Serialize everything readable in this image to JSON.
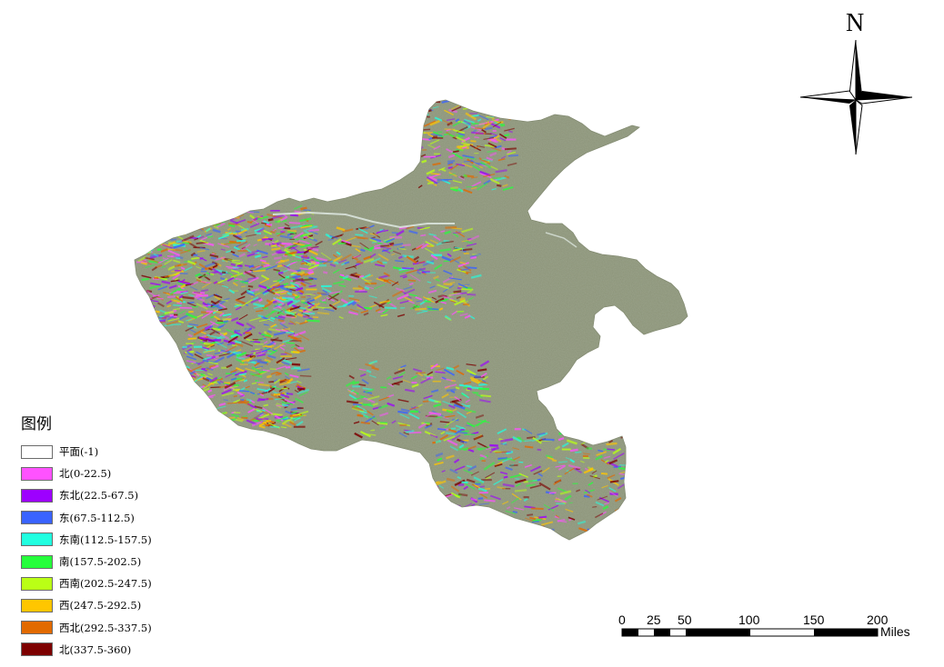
{
  "legend": {
    "title": "图例",
    "items": [
      {
        "label": "平面(-1)",
        "color": "#ffffff"
      },
      {
        "label": "北(0-22.5)",
        "color": "#ff52ff"
      },
      {
        "label": "东北(22.5-67.5)",
        "color": "#9d00ff"
      },
      {
        "label": "东(67.5-112.5)",
        "color": "#3a63ff"
      },
      {
        "label": "东南(112.5-157.5)",
        "color": "#21ffe0"
      },
      {
        "label": "南(157.5-202.5)",
        "color": "#25ff3b"
      },
      {
        "label": "西南(202.5-247.5)",
        "color": "#baff16"
      },
      {
        "label": "西(247.5-292.5)",
        "color": "#ffc600"
      },
      {
        "label": "西北(292.5-337.5)",
        "color": "#e26a00"
      },
      {
        "label": "北(337.5-360)",
        "color": "#7d0000"
      }
    ]
  },
  "north_arrow": {
    "label": "N"
  },
  "scale_bar": {
    "ticks": [
      "0",
      "25",
      "50",
      "100",
      "150",
      "200"
    ],
    "unit": "Miles"
  },
  "map": {
    "flat_plain_color": "#8c9479"
  }
}
